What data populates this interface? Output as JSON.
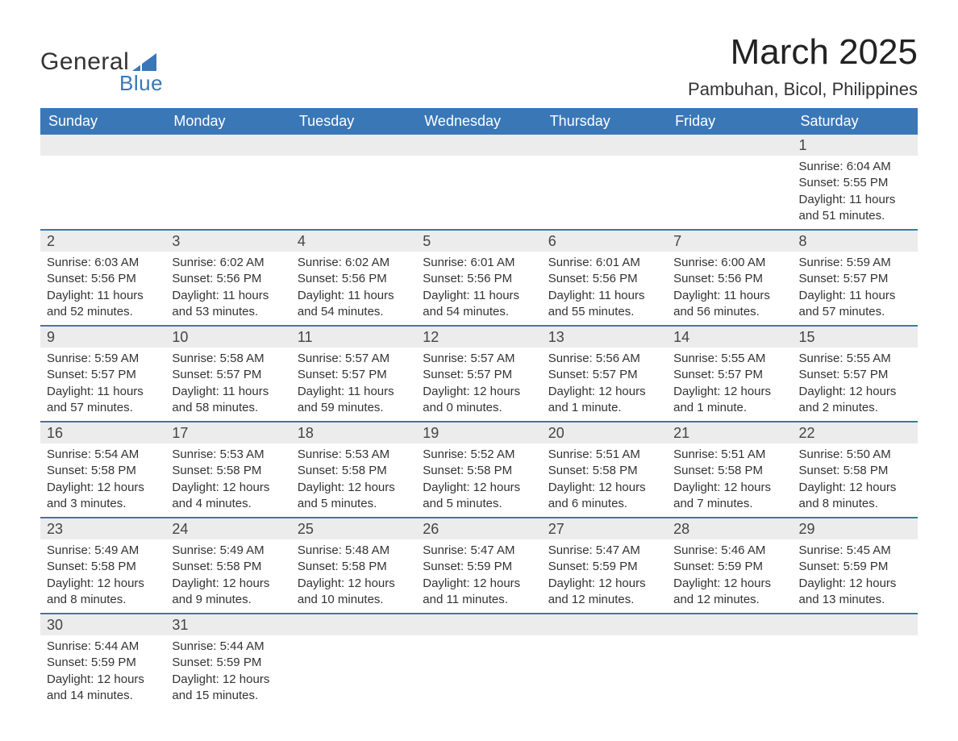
{
  "brand": {
    "name1": "General",
    "name2": "Blue",
    "sail_color": "#3a77b7"
  },
  "title": "March 2025",
  "location": "Pambuhan, Bicol, Philippines",
  "colors": {
    "header_bg": "#3a77b7",
    "header_fg": "#ffffff",
    "daynum_bg": "#ececec",
    "row_border": "#3a77b7",
    "text": "#333333",
    "page_bg": "#ffffff"
  },
  "day_headers": [
    "Sunday",
    "Monday",
    "Tuesday",
    "Wednesday",
    "Thursday",
    "Friday",
    "Saturday"
  ],
  "weeks": [
    [
      null,
      null,
      null,
      null,
      null,
      null,
      {
        "n": "1",
        "sunrise": "Sunrise: 6:04 AM",
        "sunset": "Sunset: 5:55 PM",
        "daylight": "Daylight: 11 hours and 51 minutes."
      }
    ],
    [
      {
        "n": "2",
        "sunrise": "Sunrise: 6:03 AM",
        "sunset": "Sunset: 5:56 PM",
        "daylight": "Daylight: 11 hours and 52 minutes."
      },
      {
        "n": "3",
        "sunrise": "Sunrise: 6:02 AM",
        "sunset": "Sunset: 5:56 PM",
        "daylight": "Daylight: 11 hours and 53 minutes."
      },
      {
        "n": "4",
        "sunrise": "Sunrise: 6:02 AM",
        "sunset": "Sunset: 5:56 PM",
        "daylight": "Daylight: 11 hours and 54 minutes."
      },
      {
        "n": "5",
        "sunrise": "Sunrise: 6:01 AM",
        "sunset": "Sunset: 5:56 PM",
        "daylight": "Daylight: 11 hours and 54 minutes."
      },
      {
        "n": "6",
        "sunrise": "Sunrise: 6:01 AM",
        "sunset": "Sunset: 5:56 PM",
        "daylight": "Daylight: 11 hours and 55 minutes."
      },
      {
        "n": "7",
        "sunrise": "Sunrise: 6:00 AM",
        "sunset": "Sunset: 5:56 PM",
        "daylight": "Daylight: 11 hours and 56 minutes."
      },
      {
        "n": "8",
        "sunrise": "Sunrise: 5:59 AM",
        "sunset": "Sunset: 5:57 PM",
        "daylight": "Daylight: 11 hours and 57 minutes."
      }
    ],
    [
      {
        "n": "9",
        "sunrise": "Sunrise: 5:59 AM",
        "sunset": "Sunset: 5:57 PM",
        "daylight": "Daylight: 11 hours and 57 minutes."
      },
      {
        "n": "10",
        "sunrise": "Sunrise: 5:58 AM",
        "sunset": "Sunset: 5:57 PM",
        "daylight": "Daylight: 11 hours and 58 minutes."
      },
      {
        "n": "11",
        "sunrise": "Sunrise: 5:57 AM",
        "sunset": "Sunset: 5:57 PM",
        "daylight": "Daylight: 11 hours and 59 minutes."
      },
      {
        "n": "12",
        "sunrise": "Sunrise: 5:57 AM",
        "sunset": "Sunset: 5:57 PM",
        "daylight": "Daylight: 12 hours and 0 minutes."
      },
      {
        "n": "13",
        "sunrise": "Sunrise: 5:56 AM",
        "sunset": "Sunset: 5:57 PM",
        "daylight": "Daylight: 12 hours and 1 minute."
      },
      {
        "n": "14",
        "sunrise": "Sunrise: 5:55 AM",
        "sunset": "Sunset: 5:57 PM",
        "daylight": "Daylight: 12 hours and 1 minute."
      },
      {
        "n": "15",
        "sunrise": "Sunrise: 5:55 AM",
        "sunset": "Sunset: 5:57 PM",
        "daylight": "Daylight: 12 hours and 2 minutes."
      }
    ],
    [
      {
        "n": "16",
        "sunrise": "Sunrise: 5:54 AM",
        "sunset": "Sunset: 5:58 PM",
        "daylight": "Daylight: 12 hours and 3 minutes."
      },
      {
        "n": "17",
        "sunrise": "Sunrise: 5:53 AM",
        "sunset": "Sunset: 5:58 PM",
        "daylight": "Daylight: 12 hours and 4 minutes."
      },
      {
        "n": "18",
        "sunrise": "Sunrise: 5:53 AM",
        "sunset": "Sunset: 5:58 PM",
        "daylight": "Daylight: 12 hours and 5 minutes."
      },
      {
        "n": "19",
        "sunrise": "Sunrise: 5:52 AM",
        "sunset": "Sunset: 5:58 PM",
        "daylight": "Daylight: 12 hours and 5 minutes."
      },
      {
        "n": "20",
        "sunrise": "Sunrise: 5:51 AM",
        "sunset": "Sunset: 5:58 PM",
        "daylight": "Daylight: 12 hours and 6 minutes."
      },
      {
        "n": "21",
        "sunrise": "Sunrise: 5:51 AM",
        "sunset": "Sunset: 5:58 PM",
        "daylight": "Daylight: 12 hours and 7 minutes."
      },
      {
        "n": "22",
        "sunrise": "Sunrise: 5:50 AM",
        "sunset": "Sunset: 5:58 PM",
        "daylight": "Daylight: 12 hours and 8 minutes."
      }
    ],
    [
      {
        "n": "23",
        "sunrise": "Sunrise: 5:49 AM",
        "sunset": "Sunset: 5:58 PM",
        "daylight": "Daylight: 12 hours and 8 minutes."
      },
      {
        "n": "24",
        "sunrise": "Sunrise: 5:49 AM",
        "sunset": "Sunset: 5:58 PM",
        "daylight": "Daylight: 12 hours and 9 minutes."
      },
      {
        "n": "25",
        "sunrise": "Sunrise: 5:48 AM",
        "sunset": "Sunset: 5:58 PM",
        "daylight": "Daylight: 12 hours and 10 minutes."
      },
      {
        "n": "26",
        "sunrise": "Sunrise: 5:47 AM",
        "sunset": "Sunset: 5:59 PM",
        "daylight": "Daylight: 12 hours and 11 minutes."
      },
      {
        "n": "27",
        "sunrise": "Sunrise: 5:47 AM",
        "sunset": "Sunset: 5:59 PM",
        "daylight": "Daylight: 12 hours and 12 minutes."
      },
      {
        "n": "28",
        "sunrise": "Sunrise: 5:46 AM",
        "sunset": "Sunset: 5:59 PM",
        "daylight": "Daylight: 12 hours and 12 minutes."
      },
      {
        "n": "29",
        "sunrise": "Sunrise: 5:45 AM",
        "sunset": "Sunset: 5:59 PM",
        "daylight": "Daylight: 12 hours and 13 minutes."
      }
    ],
    [
      {
        "n": "30",
        "sunrise": "Sunrise: 5:44 AM",
        "sunset": "Sunset: 5:59 PM",
        "daylight": "Daylight: 12 hours and 14 minutes."
      },
      {
        "n": "31",
        "sunrise": "Sunrise: 5:44 AM",
        "sunset": "Sunset: 5:59 PM",
        "daylight": "Daylight: 12 hours and 15 minutes."
      },
      null,
      null,
      null,
      null,
      null
    ]
  ]
}
